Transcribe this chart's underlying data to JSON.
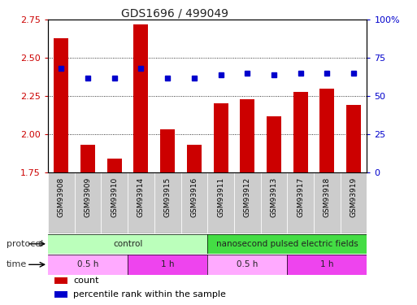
{
  "title": "GDS1696 / 499049",
  "samples": [
    "GSM93908",
    "GSM93909",
    "GSM93910",
    "GSM93914",
    "GSM93915",
    "GSM93916",
    "GSM93911",
    "GSM93912",
    "GSM93913",
    "GSM93917",
    "GSM93918",
    "GSM93919"
  ],
  "count_values": [
    2.63,
    1.93,
    1.84,
    2.72,
    2.03,
    1.93,
    2.2,
    2.23,
    2.12,
    2.28,
    2.3,
    2.19
  ],
  "percentile_values": [
    68,
    62,
    62,
    68,
    62,
    62,
    64,
    65,
    64,
    65,
    65,
    65
  ],
  "ylim_left": [
    1.75,
    2.75
  ],
  "ylim_right": [
    0,
    100
  ],
  "yticks_left": [
    1.75,
    2.0,
    2.25,
    2.5,
    2.75
  ],
  "yticks_right": [
    0,
    25,
    50,
    75,
    100
  ],
  "ytick_labels_right": [
    "0",
    "25",
    "50",
    "75",
    "100%"
  ],
  "bar_color": "#cc0000",
  "dot_color": "#0000cc",
  "grid_color": "#000000",
  "protocol_groups": [
    {
      "label": "control",
      "start": 0,
      "end": 6,
      "color": "#bbffbb"
    },
    {
      "label": "nanosecond pulsed electric fields",
      "start": 6,
      "end": 12,
      "color": "#44dd44"
    }
  ],
  "time_groups": [
    {
      "label": "0.5 h",
      "start": 0,
      "end": 3,
      "color": "#ffaaff"
    },
    {
      "label": "1 h",
      "start": 3,
      "end": 6,
      "color": "#ee44ee"
    },
    {
      "label": "0.5 h",
      "start": 6,
      "end": 9,
      "color": "#ffaaff"
    },
    {
      "label": "1 h",
      "start": 9,
      "end": 12,
      "color": "#ee44ee"
    }
  ],
  "protocol_label": "protocol",
  "time_label": "time",
  "legend_count_label": "count",
  "legend_percentile_label": "percentile rank within the sample",
  "background_color": "#ffffff",
  "tick_label_color_left": "#cc0000",
  "tick_label_color_right": "#0000cc",
  "sample_bg_color": "#cccccc"
}
